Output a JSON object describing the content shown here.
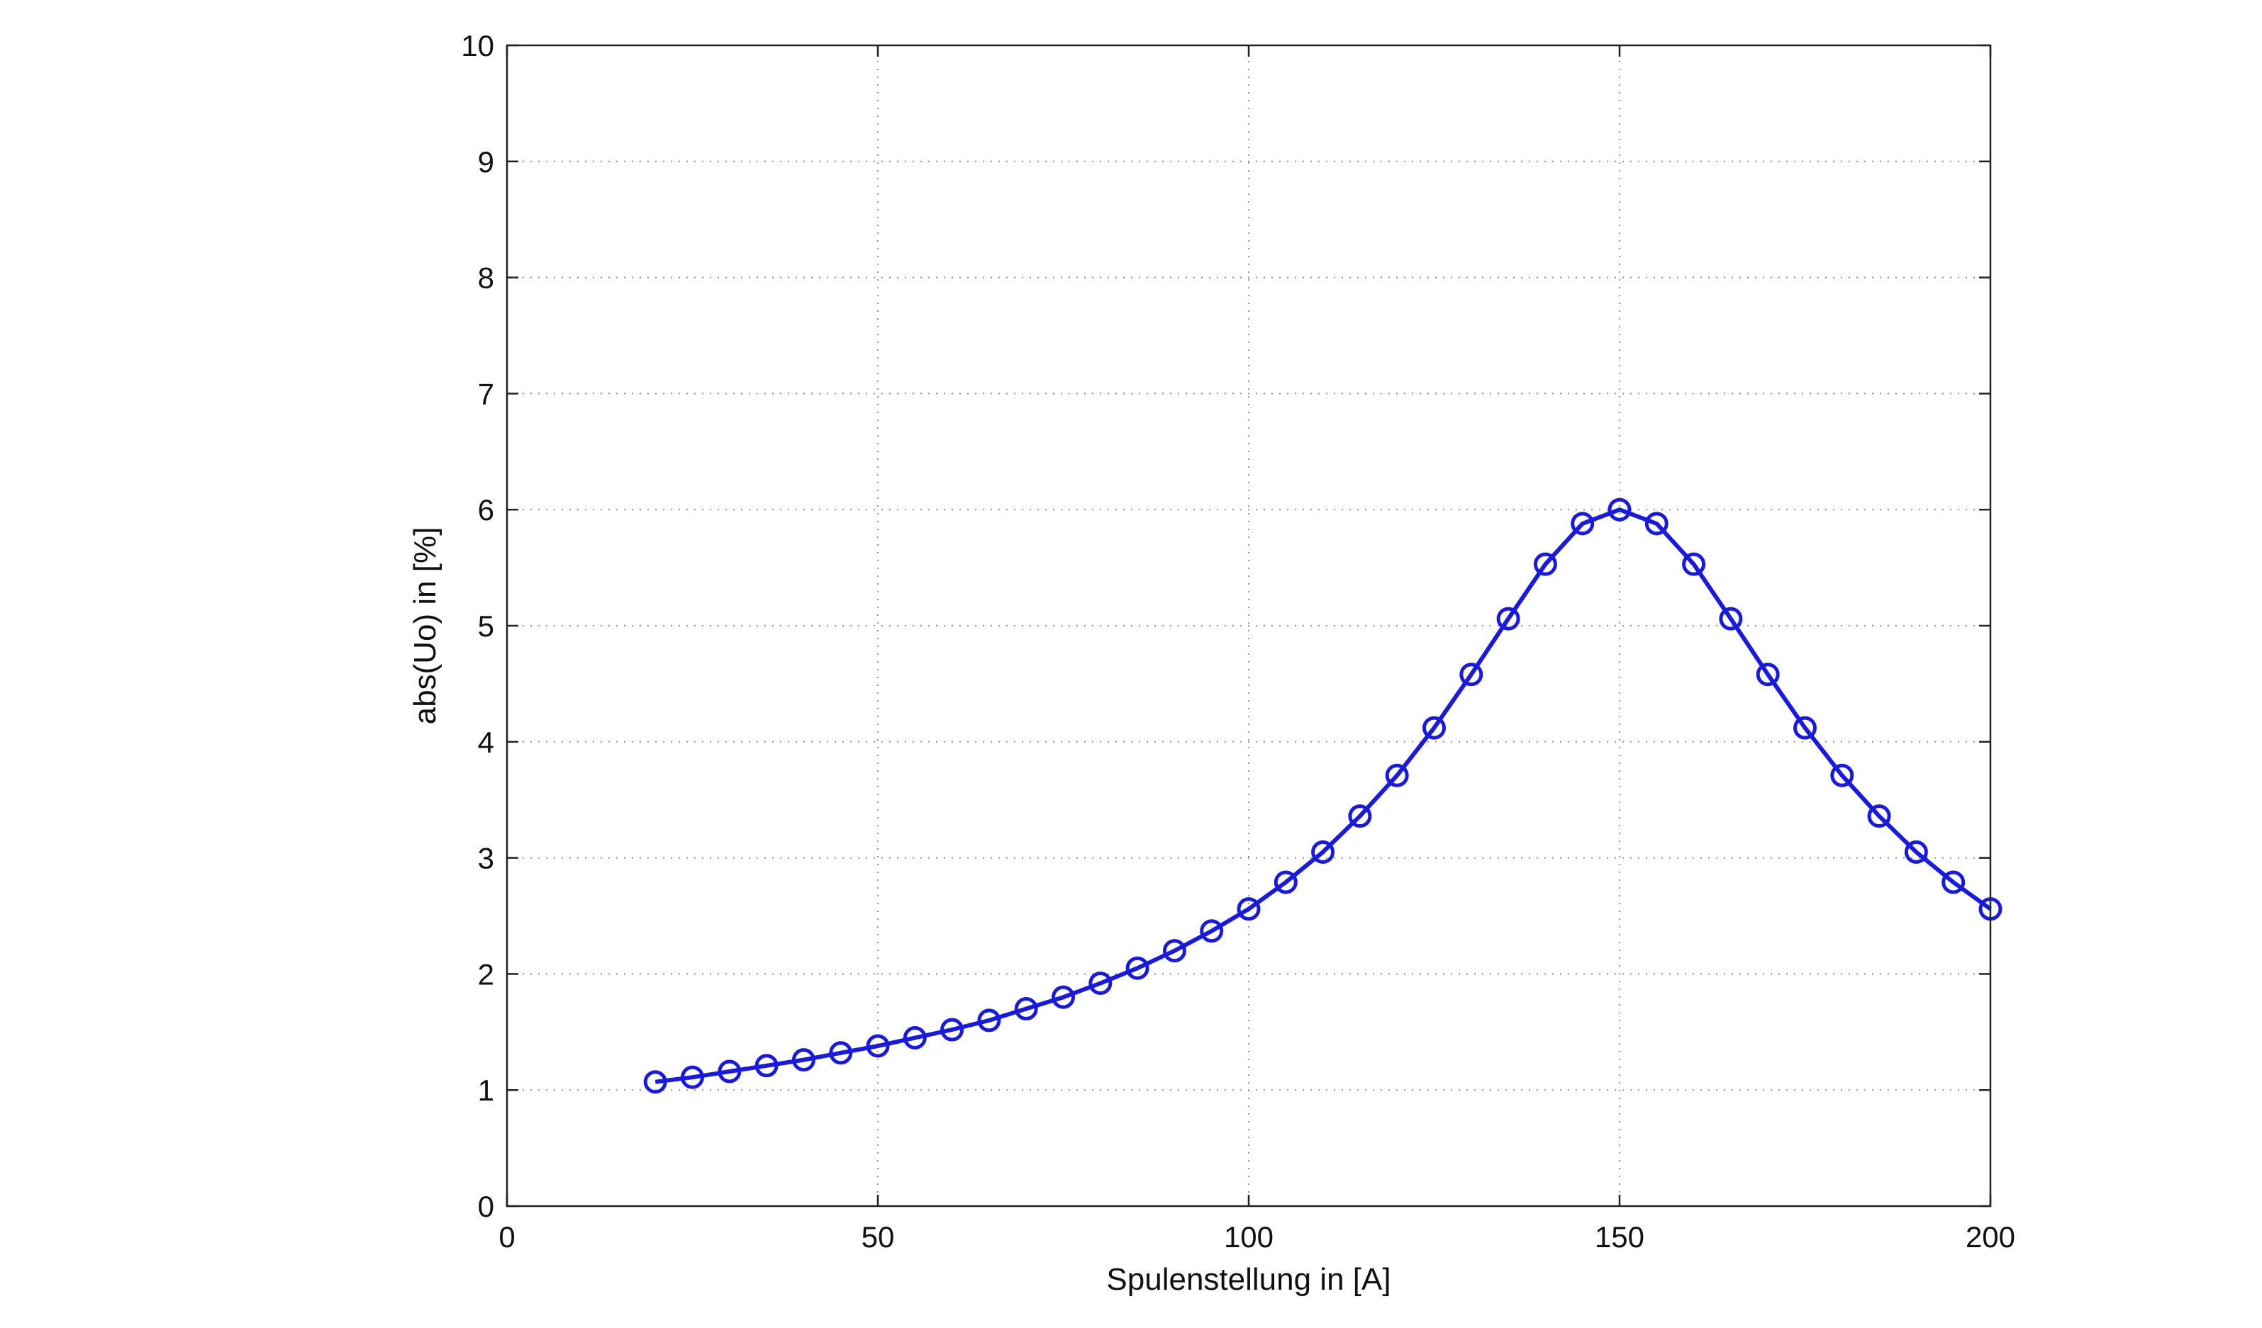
{
  "chart_data": {
    "type": "line",
    "title": "",
    "xlabel": "Spulenstellung in [A]",
    "ylabel": "abs(Uo) in [%]",
    "xlim": [
      0,
      200
    ],
    "ylim": [
      0,
      10
    ],
    "xticks": [
      0,
      50,
      100,
      150,
      200
    ],
    "yticks": [
      0,
      1,
      2,
      3,
      4,
      5,
      6,
      7,
      8,
      9,
      10
    ],
    "grid": true,
    "legend": "none",
    "series": [
      {
        "color": "#1a1adb",
        "marker": "circle",
        "x": [
          20,
          25,
          30,
          35,
          40,
          45,
          50,
          55,
          60,
          65,
          70,
          75,
          80,
          85,
          90,
          95,
          100,
          105,
          110,
          115,
          120,
          125,
          130,
          135,
          140,
          145,
          150,
          155,
          160,
          165,
          170,
          175,
          180,
          185,
          190,
          195,
          200
        ],
        "y": [
          1.07,
          1.11,
          1.16,
          1.21,
          1.26,
          1.32,
          1.38,
          1.45,
          1.52,
          1.6,
          1.7,
          1.8,
          1.92,
          2.05,
          2.2,
          2.37,
          2.56,
          2.79,
          3.05,
          3.36,
          3.71,
          4.12,
          4.58,
          5.06,
          5.53,
          5.88,
          6.0,
          5.88,
          5.53,
          5.06,
          4.58,
          4.12,
          3.71,
          3.36,
          3.05,
          2.79,
          2.56
        ]
      }
    ]
  }
}
